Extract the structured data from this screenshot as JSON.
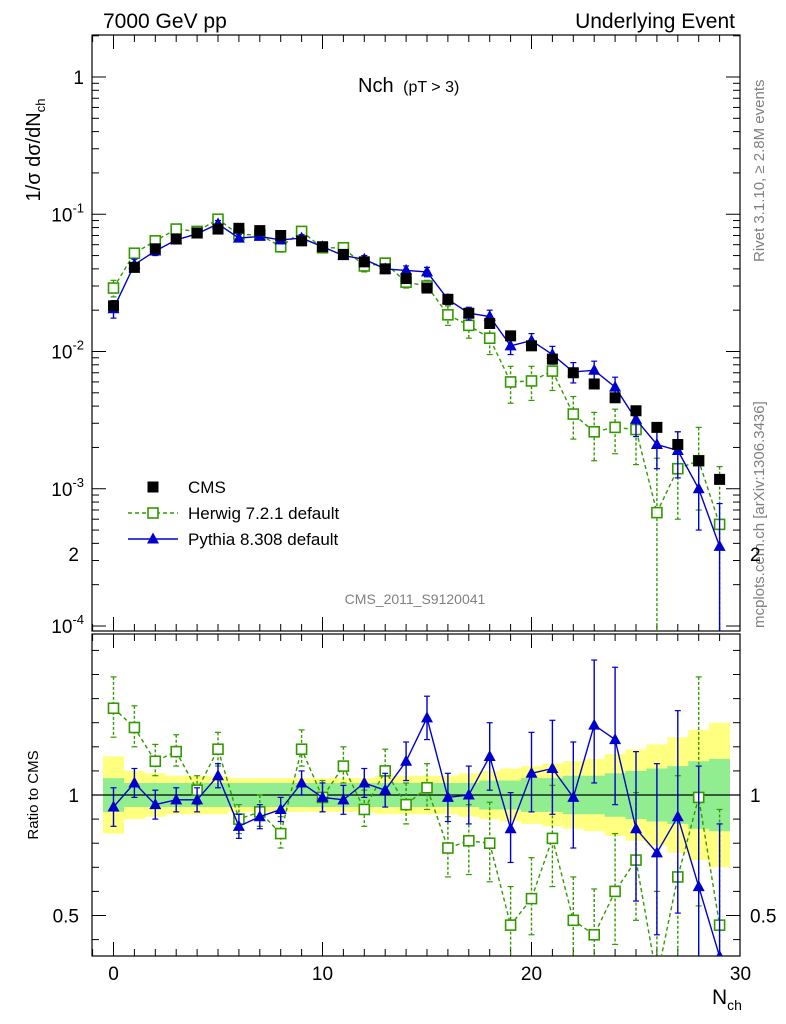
{
  "header": {
    "left": "7000 GeV pp",
    "right": "Underlying Event"
  },
  "plot_title": {
    "main": "Nch",
    "sub": "(pT >  3)"
  },
  "side_texts": {
    "rivet": "Rivet 3.1.10, ≥ 2.8M events",
    "mcplots": "mcplots.cern.ch [arXiv:1306.3436]"
  },
  "analysis_id": "CMS_2011_S9120041",
  "chart_data": [
    {
      "type": "scatter",
      "panel": "main",
      "ylabel": "1/σ dσ/dN_ch",
      "yscale": "log",
      "xlim": [
        -1,
        30
      ],
      "ylim": [
        0.0001,
        2
      ],
      "ytick_labels": [
        "1",
        "10⁻¹",
        "10⁻²",
        "10⁻³",
        "10⁻⁴"
      ],
      "legend_position": "bottom-left",
      "x": [
        0,
        1,
        2,
        3,
        4,
        5,
        6,
        7,
        8,
        9,
        10,
        11,
        12,
        13,
        14,
        15,
        16,
        17,
        18,
        19,
        20,
        21,
        22,
        23,
        24,
        25,
        26,
        27,
        28,
        29
      ],
      "series": [
        {
          "name": "CMS",
          "color": "#000000",
          "marker": "filled-square",
          "values": [
            0.0215,
            0.041,
            0.056,
            0.066,
            0.073,
            0.078,
            0.079,
            0.076,
            0.07,
            0.064,
            0.058,
            0.051,
            0.045,
            0.04,
            0.034,
            0.029,
            0.024,
            0.019,
            0.016,
            0.013,
            0.011,
            0.0088,
            0.007,
            0.0058,
            0.0046,
            0.0037,
            0.0028,
            0.0021,
            0.0016,
            0.00117
          ]
        },
        {
          "name": "Herwig 7.2.1 default",
          "color": "#339900",
          "marker": "open-square",
          "line": "dashed",
          "values": [
            0.029,
            0.052,
            0.064,
            0.078,
            0.075,
            0.092,
            0.071,
            0.071,
            0.058,
            0.075,
            0.057,
            0.057,
            0.042,
            0.044,
            0.032,
            0.03,
            0.0185,
            0.0155,
            0.0125,
            0.006,
            0.0061,
            0.0072,
            0.0035,
            0.0026,
            0.0028,
            0.0027,
            0.00067,
            0.0014,
            0.0016,
            0.00055
          ],
          "err_low": [
            0.004,
            0.004,
            0.004,
            0.005,
            0.005,
            0.006,
            0.005,
            0.005,
            0.005,
            0.005,
            0.004,
            0.004,
            0.004,
            0.004,
            0.003,
            0.003,
            0.003,
            0.003,
            0.003,
            0.0018,
            0.0017,
            0.002,
            0.0012,
            0.001,
            0.001,
            0.0012,
            0.00066,
            0.0008,
            0.0009,
            0.00054
          ],
          "err_high": [
            0.004,
            0.004,
            0.004,
            0.005,
            0.005,
            0.006,
            0.005,
            0.005,
            0.005,
            0.005,
            0.004,
            0.004,
            0.004,
            0.004,
            0.003,
            0.003,
            0.003,
            0.003,
            0.003,
            0.0018,
            0.0017,
            0.002,
            0.0012,
            0.001,
            0.001,
            0.0012,
            0.001,
            0.0012,
            0.0012,
            0.0009
          ]
        },
        {
          "name": "Pythia 8.308 default",
          "color": "#0000cc",
          "marker": "filled-triangle",
          "line": "solid",
          "values": [
            0.0205,
            0.043,
            0.054,
            0.065,
            0.072,
            0.085,
            0.067,
            0.069,
            0.065,
            0.067,
            0.058,
            0.05,
            0.047,
            0.04,
            0.039,
            0.038,
            0.024,
            0.019,
            0.018,
            0.011,
            0.012,
            0.0095,
            0.0071,
            0.0073,
            0.0055,
            0.0032,
            0.0021,
            0.0019,
            0.001,
            0.00038
          ],
          "err_low": [
            0.003,
            0.004,
            0.004,
            0.004,
            0.004,
            0.005,
            0.004,
            0.004,
            0.004,
            0.004,
            0.004,
            0.003,
            0.003,
            0.003,
            0.003,
            0.003,
            0.002,
            0.002,
            0.002,
            0.0015,
            0.0015,
            0.0014,
            0.0012,
            0.0012,
            0.001,
            0.0008,
            0.0007,
            0.0007,
            0.0005,
            0.00037
          ],
          "err_high": [
            0.003,
            0.004,
            0.004,
            0.004,
            0.004,
            0.005,
            0.004,
            0.004,
            0.004,
            0.004,
            0.004,
            0.003,
            0.003,
            0.003,
            0.003,
            0.003,
            0.002,
            0.002,
            0.002,
            0.0015,
            0.0015,
            0.0014,
            0.0012,
            0.0012,
            0.001,
            0.0008,
            0.0007,
            0.0007,
            0.0005,
            0.0004
          ]
        }
      ]
    },
    {
      "type": "scatter",
      "panel": "ratio",
      "ylabel": "Ratio to CMS",
      "xlabel": "N_ch",
      "xlim": [
        -1,
        30
      ],
      "ylim": [
        0.34,
        2.5
      ],
      "ytick_labels": [
        "2",
        "1",
        "0.5"
      ],
      "xtick_labels": [
        "0",
        "10",
        "20",
        "30"
      ],
      "x": [
        0,
        1,
        2,
        3,
        4,
        5,
        6,
        7,
        8,
        9,
        10,
        11,
        12,
        13,
        14,
        15,
        16,
        17,
        18,
        19,
        20,
        21,
        22,
        23,
        24,
        25,
        26,
        27,
        28,
        29
      ],
      "reference_line": 1,
      "band_inner": {
        "color": "#90ee90",
        "half_width": [
          0.07,
          0.05,
          0.05,
          0.05,
          0.05,
          0.05,
          0.05,
          0.05,
          0.05,
          0.05,
          0.05,
          0.05,
          0.05,
          0.05,
          0.05,
          0.05,
          0.05,
          0.05,
          0.06,
          0.06,
          0.07,
          0.07,
          0.08,
          0.08,
          0.09,
          0.1,
          0.11,
          0.12,
          0.14,
          0.15
        ]
      },
      "band_outer": {
        "color": "#ffff80",
        "half_width": [
          0.16,
          0.1,
          0.09,
          0.08,
          0.08,
          0.08,
          0.07,
          0.07,
          0.07,
          0.07,
          0.07,
          0.07,
          0.07,
          0.08,
          0.08,
          0.08,
          0.08,
          0.09,
          0.1,
          0.11,
          0.12,
          0.13,
          0.14,
          0.15,
          0.17,
          0.19,
          0.21,
          0.24,
          0.27,
          0.3
        ]
      },
      "series": [
        {
          "name": "Herwig 7.2.1 default",
          "color": "#339900",
          "marker": "open-square",
          "line": "dashed",
          "values": [
            1.36,
            1.28,
            1.14,
            1.18,
            1.02,
            1.19,
            0.9,
            0.93,
            0.84,
            1.19,
            0.99,
            1.12,
            0.94,
            1.1,
            0.96,
            1.03,
            0.78,
            0.81,
            0.8,
            0.46,
            0.57,
            0.82,
            0.48,
            0.42,
            0.6,
            0.73,
            0.24,
            0.66,
            0.99,
            0.46
          ],
          "err_low": [
            0.12,
            0.08,
            0.06,
            0.06,
            0.06,
            0.07,
            0.06,
            0.06,
            0.06,
            0.07,
            0.06,
            0.07,
            0.07,
            0.08,
            0.08,
            0.09,
            0.12,
            0.14,
            0.16,
            0.14,
            0.15,
            0.2,
            0.17,
            0.17,
            0.22,
            0.25,
            0.3,
            0.38,
            0.45,
            0.46
          ],
          "err_high": [
            0.13,
            0.09,
            0.07,
            0.07,
            0.06,
            0.07,
            0.06,
            0.07,
            0.07,
            0.08,
            0.07,
            0.08,
            0.08,
            0.09,
            0.09,
            0.1,
            0.13,
            0.15,
            0.17,
            0.16,
            0.17,
            0.22,
            0.18,
            0.19,
            0.24,
            0.28,
            0.36,
            0.42,
            0.5,
            0.48
          ]
        },
        {
          "name": "Pythia 8.308 default",
          "color": "#0000cc",
          "marker": "filled-triangle",
          "line": "solid",
          "values": [
            0.95,
            1.05,
            0.96,
            0.98,
            0.98,
            1.08,
            0.87,
            0.91,
            0.94,
            1.05,
            0.99,
            0.98,
            1.05,
            1.02,
            1.14,
            1.32,
            0.99,
            1.0,
            1.16,
            0.86,
            1.09,
            1.11,
            0.99,
            1.29,
            1.23,
            0.86,
            0.76,
            0.91,
            0.62,
            0.33
          ],
          "err_low": [
            0.08,
            0.06,
            0.06,
            0.05,
            0.05,
            0.05,
            0.05,
            0.05,
            0.05,
            0.05,
            0.06,
            0.06,
            0.06,
            0.07,
            0.08,
            0.09,
            0.1,
            0.12,
            0.14,
            0.14,
            0.16,
            0.19,
            0.21,
            0.24,
            0.27,
            0.3,
            0.34,
            0.4,
            0.45,
            0.4
          ],
          "err_high": [
            0.08,
            0.06,
            0.06,
            0.05,
            0.05,
            0.05,
            0.05,
            0.05,
            0.05,
            0.05,
            0.06,
            0.06,
            0.06,
            0.07,
            0.08,
            0.09,
            0.1,
            0.12,
            0.14,
            0.15,
            0.17,
            0.2,
            0.23,
            0.27,
            0.3,
            0.32,
            0.37,
            0.44,
            0.5,
            0.55
          ]
        }
      ]
    }
  ]
}
